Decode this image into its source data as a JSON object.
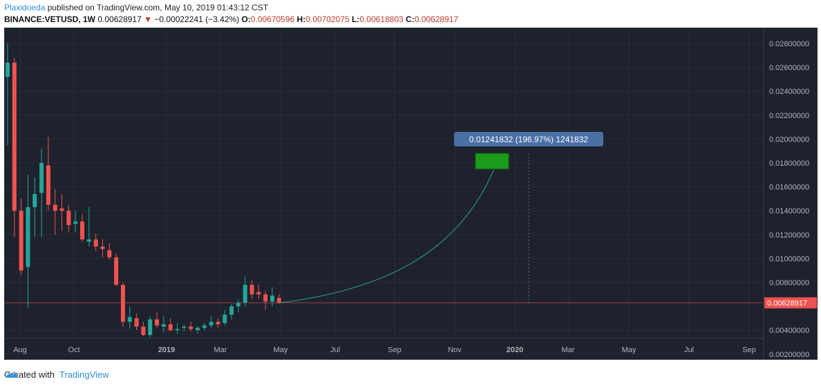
{
  "header": {
    "author": "Plaxidoeda",
    "published_text": "published on TradingView.com, May 10, 2019 01:43:12 CST",
    "symbol": "BINANCE:VETUSD, 1W",
    "last": "0.00628917",
    "change_arrow": "▼",
    "change": "−0.00022241 (−3.42%)",
    "o_label": "O:",
    "o_value": "0.00670596",
    "h_label": "H:",
    "h_value": "0.00702075",
    "l_label": "L:",
    "l_value": "0.00618803",
    "c_label": "C:",
    "c_value": "0.00628917"
  },
  "footer": {
    "created_with": "Created with",
    "brand": "TradingView"
  },
  "colors": {
    "background": "#1e222d",
    "grid": "#2a2e39",
    "up": "#26a69a",
    "down": "#ef5350",
    "price_line": "#ef5350",
    "projection_box": "#1a9c1a",
    "projection_curve": "#26a69a",
    "label_bg": "#4a6fa5"
  },
  "chart_data": {
    "type": "candlestick",
    "interval": "1W",
    "ylim": [
      0.0018,
      0.029
    ],
    "y_ticks": [
      "0.02800000",
      "0.02600000",
      "0.02400000",
      "0.02200000",
      "0.02000000",
      "0.01800000",
      "0.01600000",
      "0.01400000",
      "0.01200000",
      "0.01000000",
      "0.00800000",
      "0.00400000",
      "0.00200000"
    ],
    "x_ticks": [
      "Aug",
      "Oct",
      "2019",
      "Mar",
      "May",
      "Jul",
      "Sep",
      "Nov",
      "2020",
      "Mar",
      "May",
      "Jul",
      "Sep"
    ],
    "last_price_label": "0.00628917",
    "candles": [
      {
        "o": 0.0252,
        "h": 0.028,
        "l": 0.0195,
        "c": 0.0264
      },
      {
        "o": 0.0264,
        "h": 0.0268,
        "l": 0.0118,
        "c": 0.014
      },
      {
        "o": 0.014,
        "h": 0.015,
        "l": 0.0086,
        "c": 0.009
      },
      {
        "o": 0.0093,
        "h": 0.017,
        "l": 0.0059,
        "c": 0.0143
      },
      {
        "o": 0.0143,
        "h": 0.0168,
        "l": 0.0118,
        "c": 0.0154
      },
      {
        "o": 0.0155,
        "h": 0.0192,
        "l": 0.0118,
        "c": 0.018
      },
      {
        "o": 0.0178,
        "h": 0.0202,
        "l": 0.014,
        "c": 0.0145
      },
      {
        "o": 0.0145,
        "h": 0.0158,
        "l": 0.012,
        "c": 0.014
      },
      {
        "o": 0.0142,
        "h": 0.0154,
        "l": 0.0123,
        "c": 0.014
      },
      {
        "o": 0.014,
        "h": 0.0145,
        "l": 0.0122,
        "c": 0.0128
      },
      {
        "o": 0.0129,
        "h": 0.014,
        "l": 0.0122,
        "c": 0.0131
      },
      {
        "o": 0.0131,
        "h": 0.0137,
        "l": 0.0114,
        "c": 0.0116
      },
      {
        "o": 0.0114,
        "h": 0.0143,
        "l": 0.011,
        "c": 0.0116
      },
      {
        "o": 0.0116,
        "h": 0.0121,
        "l": 0.0106,
        "c": 0.011
      },
      {
        "o": 0.011,
        "h": 0.0116,
        "l": 0.0101,
        "c": 0.0108
      },
      {
        "o": 0.0107,
        "h": 0.0113,
        "l": 0.0099,
        "c": 0.0101
      },
      {
        "o": 0.0101,
        "h": 0.0104,
        "l": 0.0077,
        "c": 0.0078
      },
      {
        "o": 0.0078,
        "h": 0.008,
        "l": 0.0043,
        "c": 0.0047
      },
      {
        "o": 0.0047,
        "h": 0.006,
        "l": 0.0041,
        "c": 0.0051
      },
      {
        "o": 0.005,
        "h": 0.0054,
        "l": 0.004,
        "c": 0.0043
      },
      {
        "o": 0.0043,
        "h": 0.0047,
        "l": 0.0035,
        "c": 0.0036
      },
      {
        "o": 0.0036,
        "h": 0.0052,
        "l": 0.0034,
        "c": 0.0049
      },
      {
        "o": 0.0049,
        "h": 0.0055,
        "l": 0.0042,
        "c": 0.0044
      },
      {
        "o": 0.0043,
        "h": 0.0052,
        "l": 0.0038,
        "c": 0.0045
      },
      {
        "o": 0.0045,
        "h": 0.005,
        "l": 0.0039,
        "c": 0.004
      },
      {
        "o": 0.004,
        "h": 0.0046,
        "l": 0.0037,
        "c": 0.0041
      },
      {
        "o": 0.0042,
        "h": 0.0045,
        "l": 0.0039,
        "c": 0.0043
      },
      {
        "o": 0.0043,
        "h": 0.0047,
        "l": 0.0039,
        "c": 0.0041
      },
      {
        "o": 0.004,
        "h": 0.0044,
        "l": 0.0037,
        "c": 0.0042
      },
      {
        "o": 0.0042,
        "h": 0.0046,
        "l": 0.004,
        "c": 0.0044
      },
      {
        "o": 0.0044,
        "h": 0.0052,
        "l": 0.0042,
        "c": 0.0047
      },
      {
        "o": 0.0047,
        "h": 0.005,
        "l": 0.0042,
        "c": 0.0045
      },
      {
        "o": 0.0046,
        "h": 0.0057,
        "l": 0.0044,
        "c": 0.0053
      },
      {
        "o": 0.0053,
        "h": 0.0062,
        "l": 0.0049,
        "c": 0.006
      },
      {
        "o": 0.006,
        "h": 0.0066,
        "l": 0.0055,
        "c": 0.0063
      },
      {
        "o": 0.0063,
        "h": 0.0085,
        "l": 0.006,
        "c": 0.0078
      },
      {
        "o": 0.0078,
        "h": 0.0082,
        "l": 0.0066,
        "c": 0.007
      },
      {
        "o": 0.0072,
        "h": 0.0078,
        "l": 0.0066,
        "c": 0.007
      },
      {
        "o": 0.007,
        "h": 0.0073,
        "l": 0.0057,
        "c": 0.0064
      },
      {
        "o": 0.0064,
        "h": 0.0076,
        "l": 0.006,
        "c": 0.0069
      },
      {
        "o": 0.0067,
        "h": 0.007,
        "l": 0.0062,
        "c": 0.0063
      }
    ],
    "projection": {
      "label": "0.01241832 (196.97%) 1241832",
      "start_price": 0.00628917,
      "target_low": 0.0175,
      "target_high": 0.0188
    }
  }
}
